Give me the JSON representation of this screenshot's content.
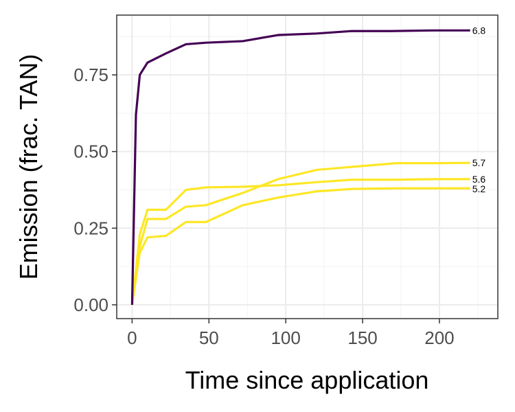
{
  "chart_data": {
    "type": "line",
    "title": "",
    "xlabel": "Time since application",
    "ylabel": "Emission (frac. TAN)",
    "xlim": [
      -10,
      238
    ],
    "ylim": [
      -0.045,
      0.945
    ],
    "x_ticks": [
      0,
      50,
      100,
      150,
      200
    ],
    "x_tick_labels": [
      "0",
      "50",
      "100",
      "150",
      "200"
    ],
    "y_ticks": [
      0,
      0.25,
      0.5,
      0.75
    ],
    "y_tick_labels": [
      "0.00",
      "0.25",
      "0.50",
      "0.75"
    ],
    "grid": true,
    "legend": "none",
    "series": [
      {
        "label": "6.8",
        "color": "#440154",
        "x": [
          0,
          2.5,
          5,
          10,
          22,
          35,
          48,
          72,
          95,
          120,
          143,
          168,
          196,
          220
        ],
        "y": [
          0,
          0.62,
          0.75,
          0.79,
          0.82,
          0.85,
          0.855,
          0.86,
          0.88,
          0.885,
          0.893,
          0.893,
          0.895,
          0.895
        ]
      },
      {
        "label": "5.7",
        "color": "#fde725",
        "x": [
          0,
          5,
          10,
          22,
          35,
          48,
          72,
          95,
          120,
          143,
          172,
          196,
          220
        ],
        "y": [
          0,
          0.19,
          0.28,
          0.28,
          0.32,
          0.325,
          0.365,
          0.41,
          0.44,
          0.45,
          0.462,
          0.462,
          0.463
        ]
      },
      {
        "label": "5.6",
        "color": "#fde725",
        "x": [
          0,
          5,
          10,
          22,
          35,
          48,
          72,
          95,
          120,
          143,
          172,
          196,
          220
        ],
        "y": [
          0,
          0.23,
          0.31,
          0.31,
          0.375,
          0.383,
          0.385,
          0.39,
          0.4,
          0.408,
          0.408,
          0.41,
          0.41
        ]
      },
      {
        "label": "5.2",
        "color": "#fde725",
        "x": [
          0,
          5,
          10,
          22,
          35,
          48,
          72,
          95,
          120,
          143,
          172,
          196,
          220
        ],
        "y": [
          0,
          0.17,
          0.22,
          0.225,
          0.27,
          0.27,
          0.325,
          0.35,
          0.37,
          0.378,
          0.38,
          0.38,
          0.38
        ]
      }
    ],
    "end_labels": [
      {
        "text": "6.8",
        "y": 0.895
      },
      {
        "text": "5.7",
        "y": 0.463
      },
      {
        "text": "5.6",
        "y": 0.41
      },
      {
        "text": "5.2",
        "y": 0.378
      }
    ]
  }
}
